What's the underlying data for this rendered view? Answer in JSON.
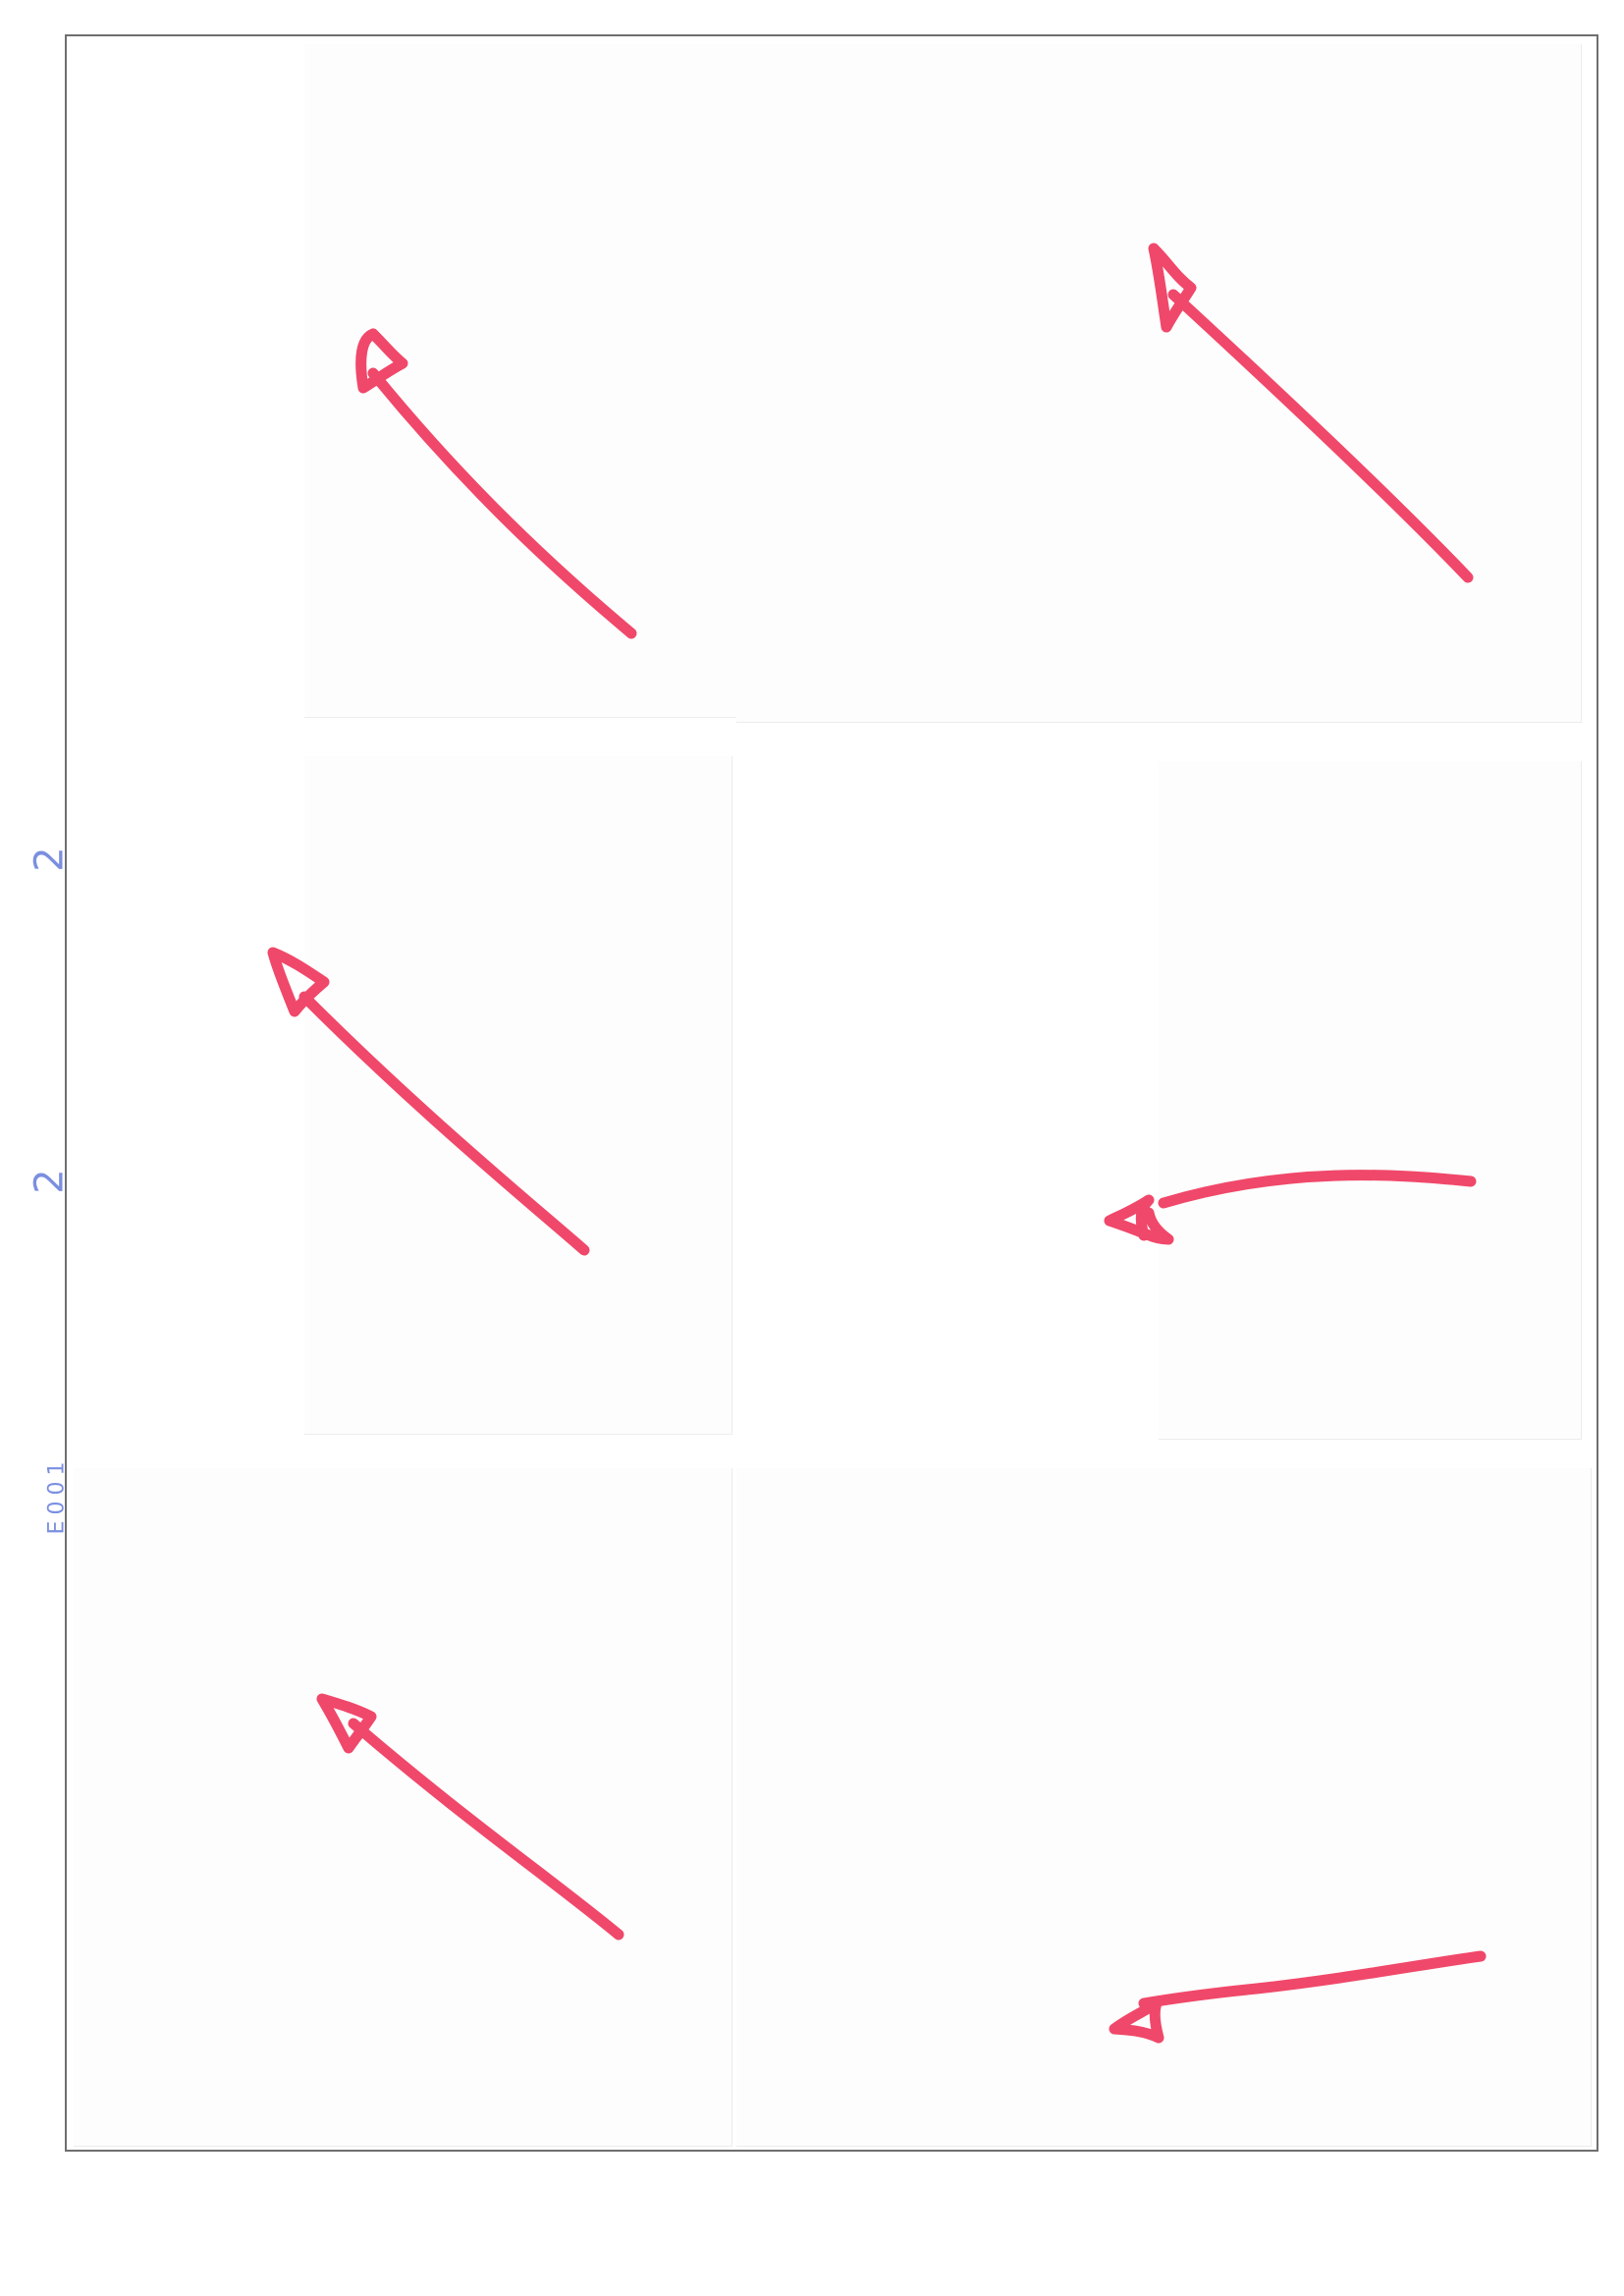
{
  "margin_marks": {
    "mark_1": "2",
    "mark_2": "2",
    "mark_3": "E001"
  },
  "colors": {
    "arrow": "#f0486a",
    "frame": "#6f6f6f",
    "margin_ink": "#7b8fe0"
  },
  "grid": {
    "rows": 3,
    "columns": 2
  },
  "arrows": [
    {
      "cell": "row-1-left",
      "direction": "up-left",
      "shape": "curved"
    },
    {
      "cell": "row-1-right",
      "direction": "up-left",
      "shape": "straight"
    },
    {
      "cell": "row-2-left",
      "direction": "up-left",
      "shape": "curved"
    },
    {
      "cell": "row-2-right",
      "direction": "left",
      "shape": "curved"
    },
    {
      "cell": "row-3-left",
      "direction": "up-left",
      "shape": "straight"
    },
    {
      "cell": "row-3-right",
      "direction": "left",
      "shape": "straight"
    }
  ]
}
